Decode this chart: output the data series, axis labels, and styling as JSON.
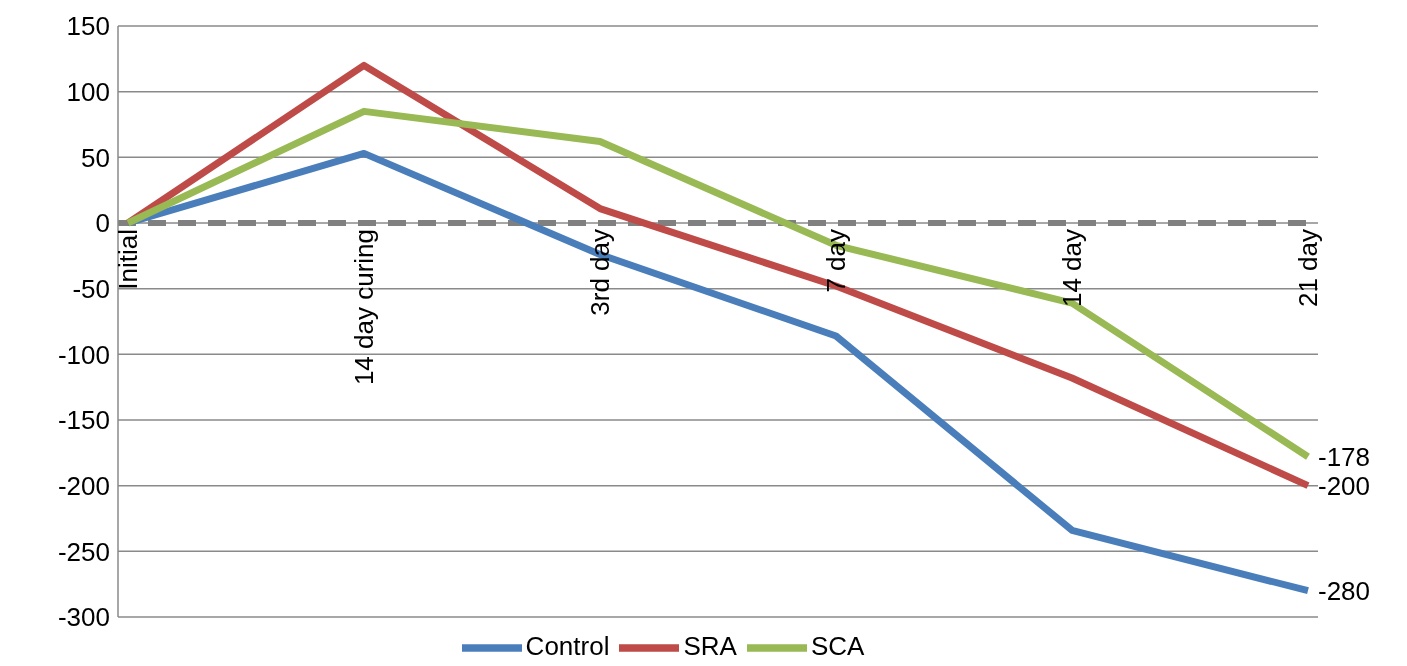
{
  "chart_data": {
    "type": "line",
    "categories": [
      "Initial",
      "14 day curing",
      "3rd day",
      "7 day",
      "14 day",
      "21 day"
    ],
    "series": [
      {
        "name": "Control",
        "color": "#4a7ebb",
        "values": [
          0,
          53,
          -24,
          -86,
          -234,
          -280
        ],
        "value_labels": [
          null,
          null,
          null,
          null,
          null,
          "-280"
        ]
      },
      {
        "name": "SRA",
        "color": "#be4b48",
        "values": [
          0,
          120,
          11,
          -48,
          -118,
          -200
        ],
        "value_labels": [
          null,
          null,
          null,
          null,
          null,
          "-200"
        ]
      },
      {
        "name": "SCA",
        "color": "#98b954",
        "values": [
          0,
          85,
          62,
          -17,
          -61,
          -178
        ],
        "value_labels": [
          null,
          null,
          null,
          null,
          null,
          "-178"
        ]
      }
    ],
    "ylim": [
      -300,
      150
    ],
    "yticks": [
      -300,
      -250,
      -200,
      -150,
      -100,
      -50,
      0,
      50,
      100,
      150
    ],
    "grid": "y",
    "legend": "bottom",
    "marker": "none",
    "line_style": "solid",
    "ref_lines": [
      {
        "axis": "y",
        "value": 0,
        "color": "#808080",
        "line_style": "dashed"
      }
    ]
  }
}
